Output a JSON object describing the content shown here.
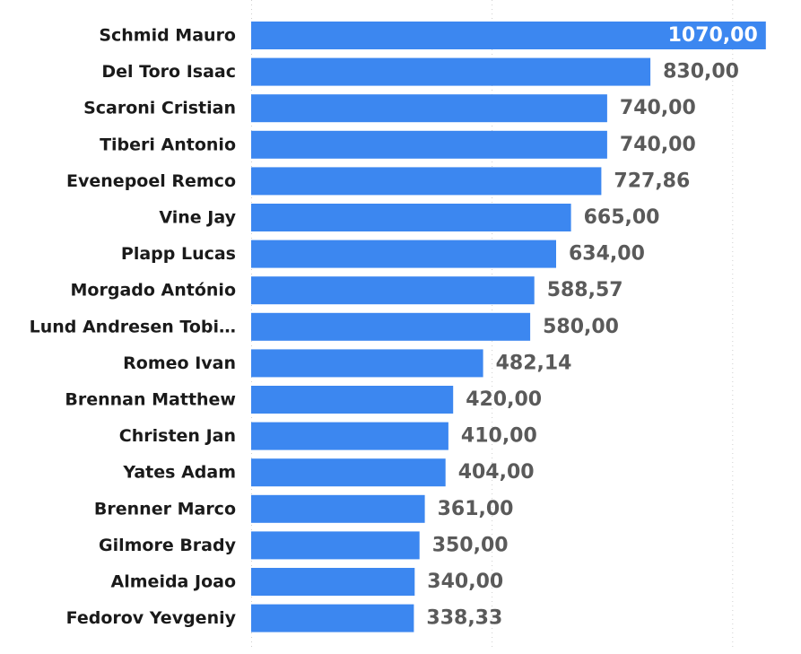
{
  "chart_data": {
    "type": "bar",
    "orientation": "horizontal",
    "categories": [
      "Schmid Mauro",
      "Del Toro Isaac",
      "Scaroni Cristian",
      "Tiberi Antonio",
      "Evenepoel Remco",
      "Vine Jay",
      "Plapp Lucas",
      "Morgado António",
      "Lund Andresen Tobi…",
      "Romeo Ivan",
      "Brennan Matthew",
      "Christen Jan",
      "Yates Adam",
      "Brenner Marco",
      "Gilmore Brady",
      "Almeida Joao",
      "Fedorov Yevgeniy"
    ],
    "values": [
      1070.0,
      830.0,
      740.0,
      740.0,
      727.86,
      665.0,
      634.0,
      588.57,
      580.0,
      482.14,
      420.0,
      410.0,
      404.0,
      361.0,
      350.0,
      340.0,
      338.33
    ],
    "value_labels": [
      "1070,00",
      "830,00",
      "740,00",
      "740,00",
      "727,86",
      "665,00",
      "634,00",
      "588,57",
      "580,00",
      "482,14",
      "420,00",
      "410,00",
      "404,00",
      "361,00",
      "350,00",
      "340,00",
      "338,33"
    ],
    "xlim": [
      0,
      1000
    ],
    "grid": true,
    "grid_values": [
      0,
      500,
      1000
    ],
    "bar_color": "#3c87f0",
    "label_color": "#5a5a5a",
    "inside_label_color": "#ffffff",
    "category_label_color": "#1a1a1a",
    "grid_color": "#cfcfcf"
  }
}
